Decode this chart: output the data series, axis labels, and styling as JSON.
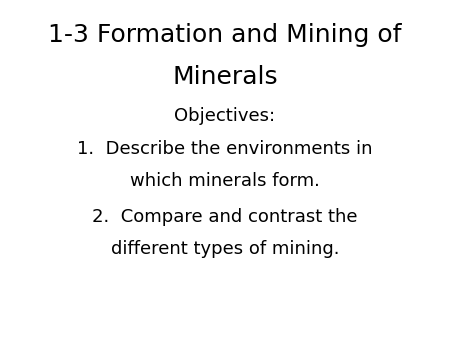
{
  "background_color": "#ffffff",
  "title_line1": "1-3 Formation and Mining of",
  "title_line2": "Minerals",
  "subtitle": "Objectives:",
  "item1_line1": "1.  Describe the environments in",
  "item1_line2": "which minerals form.",
  "item2_line1": "2.  Compare and contrast the",
  "item2_line2": "different types of mining.",
  "title_fontsize": 18,
  "subtitle_fontsize": 13,
  "body_fontsize": 13,
  "text_color": "#000000",
  "font_family": "DejaVu Sans"
}
